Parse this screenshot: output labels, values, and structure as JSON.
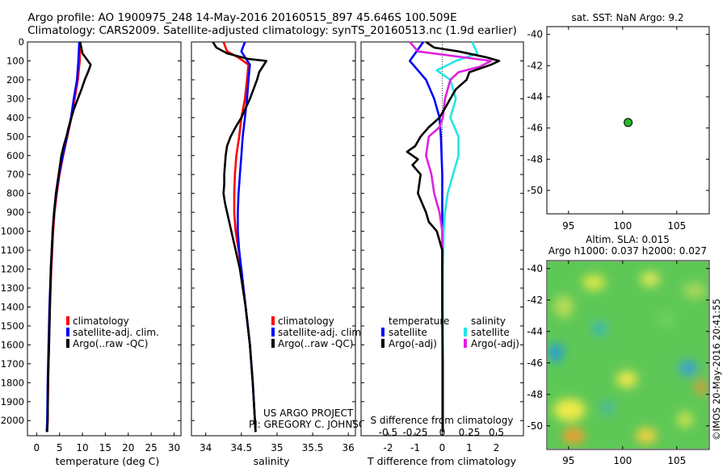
{
  "header": {
    "title_line1": "Argo profile: AO 1900975_248 14-May-2016 20160515_897 45.646S 100.509E",
    "title_line2": "Climatology: CARS2009. Satellite-adjusted climatology: synTS_20160513.nc (1.9d earlier)"
  },
  "colors": {
    "climatology": "#ff0000",
    "satellite": "#0000ff",
    "argo": "#000000",
    "sal_satellite": "#22e6e6",
    "sal_argo": "#e020e0",
    "station_dot": "#22bb22"
  },
  "credits": {
    "project": "US ARGO PROJECT",
    "pi": "PI: GREGORY C. JOHNSON",
    "stamp": "©IMOS 20-May-2016 20:41:55"
  },
  "chart_data": [
    {
      "id": "temperature",
      "type": "line",
      "xlabel": "temperature (deg C)",
      "xlim": [
        -2,
        31.5
      ],
      "xticks": [
        "0",
        "5",
        "10",
        "15",
        "20",
        "25",
        "30"
      ],
      "xtick_values": [
        0,
        5,
        10,
        15,
        20,
        25,
        30
      ],
      "ylim": [
        0,
        2080
      ],
      "yticks": [
        "0",
        "100",
        "200",
        "300",
        "400",
        "500",
        "600",
        "700",
        "800",
        "900",
        "1000",
        "1100",
        "1200",
        "1300",
        "1400",
        "1500",
        "1600",
        "1700",
        "1800",
        "1900",
        "2000"
      ],
      "ytick_values": [
        0,
        100,
        200,
        300,
        400,
        500,
        600,
        700,
        800,
        900,
        1000,
        1100,
        1200,
        1300,
        1400,
        1500,
        1600,
        1700,
        1800,
        1900,
        2000
      ],
      "legend": [
        "climatology",
        "satellite-adj. clim.",
        "Argo(..raw -QC)"
      ],
      "series": [
        {
          "name": "climatology",
          "color": "#ff0000",
          "depth": [
            0,
            100,
            200,
            300,
            400,
            500,
            600,
            700,
            800,
            900,
            1000,
            1200,
            1400,
            1600,
            1800,
            2000,
            2060
          ],
          "values": [
            9.5,
            9.4,
            9.0,
            8.3,
            7.6,
            6.7,
            5.8,
            5.0,
            4.4,
            3.9,
            3.6,
            3.2,
            2.9,
            2.7,
            2.5,
            2.4,
            2.3
          ]
        },
        {
          "name": "satellite-adj. clim.",
          "color": "#0000ff",
          "depth": [
            0,
            100,
            200,
            300,
            400,
            500,
            600,
            700,
            800,
            900,
            1000,
            1200,
            1400,
            1600,
            1800,
            2000,
            2060
          ],
          "values": [
            9.3,
            9.1,
            8.8,
            8.1,
            7.5,
            6.6,
            5.7,
            4.9,
            4.3,
            3.8,
            3.5,
            3.1,
            2.8,
            2.6,
            2.4,
            2.3,
            2.2
          ]
        },
        {
          "name": "Argo(..raw -QC)",
          "color": "#000000",
          "depth": [
            0,
            60,
            100,
            120,
            160,
            200,
            250,
            300,
            350,
            400,
            450,
            500,
            550,
            600,
            650,
            700,
            800,
            900,
            1000,
            1100,
            1200,
            1300,
            1400,
            1600,
            1800,
            2000,
            2060
          ],
          "values": [
            9.5,
            10.0,
            11.2,
            11.8,
            11.2,
            10.5,
            9.8,
            9.0,
            8.2,
            7.6,
            7.0,
            6.5,
            5.9,
            5.4,
            5.1,
            4.8,
            4.2,
            3.8,
            3.5,
            3.3,
            3.1,
            3.0,
            2.9,
            2.7,
            2.5,
            2.4,
            2.3
          ]
        }
      ]
    },
    {
      "id": "salinity",
      "type": "line",
      "xlabel": "salinity",
      "xlim": [
        33.8,
        36.1
      ],
      "xticks": [
        "34",
        "34.5",
        "35",
        "35.5",
        "36"
      ],
      "xtick_values": [
        34,
        34.5,
        35,
        35.5,
        36
      ],
      "ylim": [
        0,
        2080
      ],
      "legend": [
        "climatology",
        "satellite-adj. clim.",
        "Argo(..raw -QC)"
      ],
      "series": [
        {
          "name": "climatology",
          "color": "#ff0000",
          "depth": [
            0,
            50,
            80,
            120,
            200,
            300,
            400,
            500,
            600,
            700,
            800,
            900,
            1000,
            1100,
            1200,
            1400,
            1600,
            1800,
            2000,
            2060
          ],
          "values": [
            34.25,
            34.3,
            34.45,
            34.6,
            34.58,
            34.55,
            34.5,
            34.47,
            34.43,
            34.41,
            34.4,
            34.4,
            34.42,
            34.46,
            34.5,
            34.56,
            34.62,
            34.66,
            34.69,
            34.7
          ]
        },
        {
          "name": "satellite-adj. clim.",
          "color": "#0000ff",
          "depth": [
            0,
            50,
            80,
            120,
            200,
            300,
            400,
            500,
            600,
            700,
            800,
            900,
            1000,
            1100,
            1200,
            1400,
            1600,
            1800,
            2000,
            2060
          ],
          "values": [
            34.55,
            34.5,
            34.55,
            34.62,
            34.6,
            34.58,
            34.55,
            34.52,
            34.5,
            34.48,
            34.46,
            34.45,
            34.45,
            34.47,
            34.5,
            34.56,
            34.62,
            34.66,
            34.69,
            34.7
          ]
        },
        {
          "name": "Argo(..raw -QC)",
          "color": "#000000",
          "depth": [
            0,
            30,
            60,
            90,
            100,
            130,
            160,
            200,
            300,
            400,
            450,
            500,
            550,
            600,
            650,
            700,
            750,
            800,
            850,
            900,
            950,
            1000,
            1100,
            1200,
            1400,
            1600,
            1800,
            2000,
            2060
          ],
          "values": [
            34.1,
            34.15,
            34.3,
            34.6,
            34.85,
            34.8,
            34.75,
            34.72,
            34.62,
            34.5,
            34.42,
            34.35,
            34.3,
            34.28,
            34.27,
            34.26,
            34.26,
            34.25,
            34.27,
            34.3,
            34.33,
            34.36,
            34.42,
            34.48,
            34.56,
            34.62,
            34.66,
            34.69,
            34.7
          ]
        }
      ]
    },
    {
      "id": "differences",
      "type": "line",
      "xlabel": "T difference from climatology",
      "xlabel_top": "S difference from climatology",
      "xlim": [
        -3,
        3
      ],
      "xticks": [
        "-2",
        "-1",
        "0",
        "1",
        "2"
      ],
      "xtick_values": [
        -2,
        -1,
        0,
        1,
        2
      ],
      "top_ticks": [
        "-0.5",
        "-0.25",
        "0",
        "0.25",
        "0.5"
      ],
      "top_tick_values": [
        -2,
        -1,
        0,
        1,
        2
      ],
      "ylim": [
        0,
        2080
      ],
      "legend_t_title": "temperature",
      "legend_s_title": "salinity",
      "legend": [
        "satellite",
        "Argo(-adj)",
        "satellite",
        "Argo(-adj)"
      ],
      "series": [
        {
          "name": "T satellite",
          "color": "#0000ff",
          "depth": [
            0,
            60,
            100,
            150,
            200,
            300,
            400,
            500,
            700,
            900,
            1100,
            1400,
            1700,
            2060
          ],
          "values": [
            -0.7,
            -1.0,
            -1.2,
            -0.9,
            -0.6,
            -0.3,
            -0.1,
            -0.05,
            0,
            0,
            0,
            0,
            0.02,
            0.02
          ]
        },
        {
          "name": "S satellite",
          "color": "#22e6e6",
          "depth": [
            0,
            60,
            100,
            150,
            200,
            300,
            400,
            500,
            600,
            700,
            800,
            900,
            1000,
            1200,
            1600,
            2060
          ],
          "values": [
            1.1,
            1.3,
            0.5,
            -0.2,
            0.3,
            0.5,
            0.3,
            0.6,
            0.6,
            0.4,
            0.2,
            0.1,
            0.05,
            0.02,
            0.02,
            0.02
          ]
        },
        {
          "name": "S Argo(-adj)",
          "color": "#e020e0",
          "depth": [
            0,
            50,
            100,
            130,
            160,
            200,
            300,
            400,
            450,
            500,
            600,
            700,
            800,
            900,
            1000,
            1200,
            1600,
            2060
          ],
          "values": [
            -1.2,
            -0.9,
            1.8,
            1.4,
            0.6,
            0.3,
            0.1,
            0.02,
            -0.1,
            -0.5,
            -0.6,
            -0.4,
            -0.3,
            -0.1,
            0,
            0,
            0,
            0
          ]
        },
        {
          "name": "T Argo(-adj)",
          "color": "#000000",
          "depth": [
            0,
            30,
            50,
            80,
            100,
            120,
            160,
            200,
            250,
            300,
            350,
            400,
            450,
            500,
            550,
            580,
            620,
            650,
            700,
            800,
            900,
            950,
            1000,
            1100,
            1400,
            1700,
            2060
          ],
          "values": [
            -0.6,
            -0.3,
            0.6,
            1.6,
            2.1,
            1.8,
            1.0,
            0.9,
            0.5,
            0.3,
            0.1,
            -0.1,
            -0.5,
            -0.8,
            -1.0,
            -1.3,
            -0.9,
            -1.1,
            -0.8,
            -0.9,
            -0.6,
            -0.5,
            -0.2,
            0,
            0,
            0.02,
            0.02
          ]
        }
      ]
    },
    {
      "id": "location",
      "type": "scatter",
      "title": "sat. SST: NaN Argo: 9.2",
      "xlim": [
        93,
        108
      ],
      "ylim": [
        -51.5,
        -39.5
      ],
      "xticks": [
        "95",
        "100",
        "105"
      ],
      "xtick_values": [
        95,
        100,
        105
      ],
      "yticks": [
        "-40",
        "-42",
        "-44",
        "-46",
        "-48",
        "-50"
      ],
      "ytick_values": [
        -40,
        -42,
        -44,
        -46,
        -48,
        -50
      ],
      "points": [
        {
          "lon": 100.509,
          "lat": -45.646
        }
      ]
    },
    {
      "id": "sla",
      "type": "heatmap",
      "title_line1": "Altim. SLA: 0.015",
      "title_line2": "Argo h1000: 0.037 h2000: 0.027",
      "xlim": [
        93,
        108
      ],
      "ylim": [
        -51.5,
        -39.5
      ],
      "xticks": [
        "95",
        "100",
        "105"
      ],
      "xtick_values": [
        95,
        100,
        105
      ],
      "yticks": [
        "-40",
        "-42",
        "-44",
        "-46",
        "-48",
        "-50"
      ],
      "ytick_values": [
        -40,
        -42,
        -44,
        -46,
        -48,
        -50
      ]
    }
  ]
}
